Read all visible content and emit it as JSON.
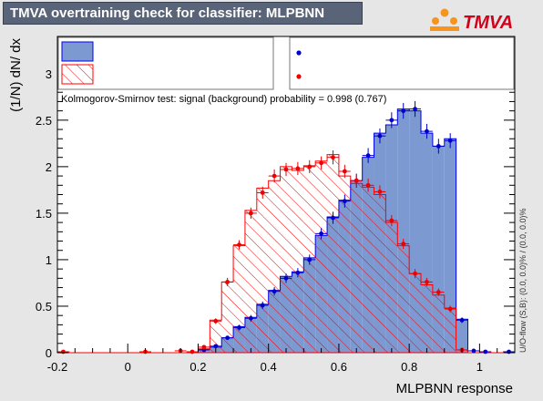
{
  "header": {
    "title": "TMVA overtraining check for classifier: MLPBNN",
    "logo_text": "TMVA"
  },
  "colors": {
    "signal_fill": "#7d99d1",
    "signal_line": "#0000ee",
    "signal_points": "#0000cc",
    "background_line": "#ff0000",
    "background_points": "#ee0000",
    "frame_bg": "#ffffff",
    "page_bg": "#e6e6e6",
    "title_bg": "#5a6478",
    "logo_orange": "#f7941d"
  },
  "side_note": "U/O-flow (S,B): (0.0, 0.0)% / (0.0, 0.0)%",
  "chart_data": {
    "type": "histogram",
    "xlabel": "MLPBNN response",
    "ylabel": "(1/N) dN/ dx",
    "xlim": [
      -0.2,
      1.1
    ],
    "ylim": [
      0,
      3.4
    ],
    "xticks": [
      -0.2,
      0,
      0.2,
      0.4,
      0.6,
      0.8,
      1
    ],
    "xtick_labels": [
      "-0.2",
      "0",
      "0.2",
      "0.4",
      "0.6",
      "0.8",
      "1"
    ],
    "yticks": [
      0,
      0.5,
      1,
      1.5,
      2,
      2.5,
      3
    ],
    "ytick_labels": [
      "0",
      "0.5",
      "1",
      "1.5",
      "2",
      "2.5",
      "3"
    ],
    "annotation": "Kolmogorov-Smirnov test: signal (background) probability = 0.998 (0.767)",
    "legend_placement": "top",
    "bin_edges": [
      -0.2,
      -0.1667,
      -0.1333,
      -0.1,
      -0.0667,
      -0.0333,
      0.0,
      0.0333,
      0.0667,
      0.1,
      0.1333,
      0.1667,
      0.2,
      0.2333,
      0.2667,
      0.3,
      0.3333,
      0.3667,
      0.4,
      0.4333,
      0.4667,
      0.5,
      0.5333,
      0.5667,
      0.6,
      0.6333,
      0.6667,
      0.7,
      0.7333,
      0.7667,
      0.8,
      0.8333,
      0.8667,
      0.9,
      0.9333,
      0.9667,
      1.0,
      1.0333,
      1.0667,
      1.1
    ],
    "series": [
      {
        "role": "signal-train-histogram",
        "values": [
          0,
          0,
          0,
          0,
          0,
          0,
          0,
          0,
          0,
          0,
          0,
          0,
          0.04,
          0.06,
          0.16,
          0.28,
          0.38,
          0.52,
          0.67,
          0.82,
          0.87,
          1.02,
          1.26,
          1.46,
          1.64,
          1.85,
          2.1,
          2.36,
          2.45,
          2.62,
          2.6,
          2.36,
          2.22,
          2.3,
          0.36,
          0,
          0,
          0,
          0
        ]
      },
      {
        "role": "background-train-histogram",
        "values": [
          0.01,
          0,
          0,
          0,
          0,
          0,
          0,
          0,
          0,
          0,
          0,
          0,
          0.04,
          0.35,
          0.76,
          1.15,
          1.53,
          1.77,
          1.85,
          2.0,
          1.96,
          2.01,
          2.06,
          2.13,
          1.9,
          1.82,
          1.78,
          1.7,
          1.4,
          1.15,
          0.85,
          0.73,
          0.62,
          0.48,
          0.03,
          0,
          0,
          0,
          0
        ]
      },
      {
        "role": "signal-test-points",
        "values": [
          0,
          0,
          0,
          0,
          0,
          0,
          0,
          0,
          0,
          0,
          0,
          0,
          0.03,
          0.07,
          0.16,
          0.27,
          0.37,
          0.51,
          0.66,
          0.8,
          0.86,
          1.0,
          1.28,
          1.45,
          1.63,
          1.85,
          2.12,
          2.33,
          2.5,
          2.6,
          2.62,
          2.38,
          2.22,
          2.28,
          0.35,
          0.02,
          0.01,
          0,
          0.01
        ],
        "errors": [
          0,
          0,
          0,
          0,
          0,
          0,
          0,
          0,
          0,
          0,
          0,
          0,
          0.01,
          0.015,
          0.02,
          0.03,
          0.035,
          0.04,
          0.045,
          0.05,
          0.05,
          0.055,
          0.06,
          0.065,
          0.07,
          0.075,
          0.08,
          0.08,
          0.085,
          0.085,
          0.085,
          0.08,
          0.08,
          0.08,
          0.03,
          0.01,
          0.01,
          0,
          0.01
        ]
      },
      {
        "role": "background-test-points",
        "values": [
          0.01,
          0,
          0,
          0,
          0,
          0,
          0,
          0.01,
          0,
          0,
          0.02,
          0.01,
          0.06,
          0.34,
          0.76,
          1.16,
          1.5,
          1.72,
          1.9,
          1.97,
          1.98,
          2.0,
          2.04,
          2.1,
          1.95,
          1.85,
          1.8,
          1.73,
          1.42,
          1.17,
          0.85,
          0.76,
          0.65,
          0.47,
          0.03,
          0,
          0,
          0,
          0
        ],
        "errors": [
          0.005,
          0,
          0,
          0,
          0,
          0,
          0,
          0.005,
          0,
          0,
          0.01,
          0.005,
          0.015,
          0.03,
          0.045,
          0.05,
          0.06,
          0.065,
          0.07,
          0.07,
          0.07,
          0.07,
          0.07,
          0.075,
          0.07,
          0.07,
          0.07,
          0.07,
          0.06,
          0.055,
          0.05,
          0.045,
          0.04,
          0.035,
          0.01,
          0,
          0,
          0,
          0
        ]
      }
    ]
  }
}
